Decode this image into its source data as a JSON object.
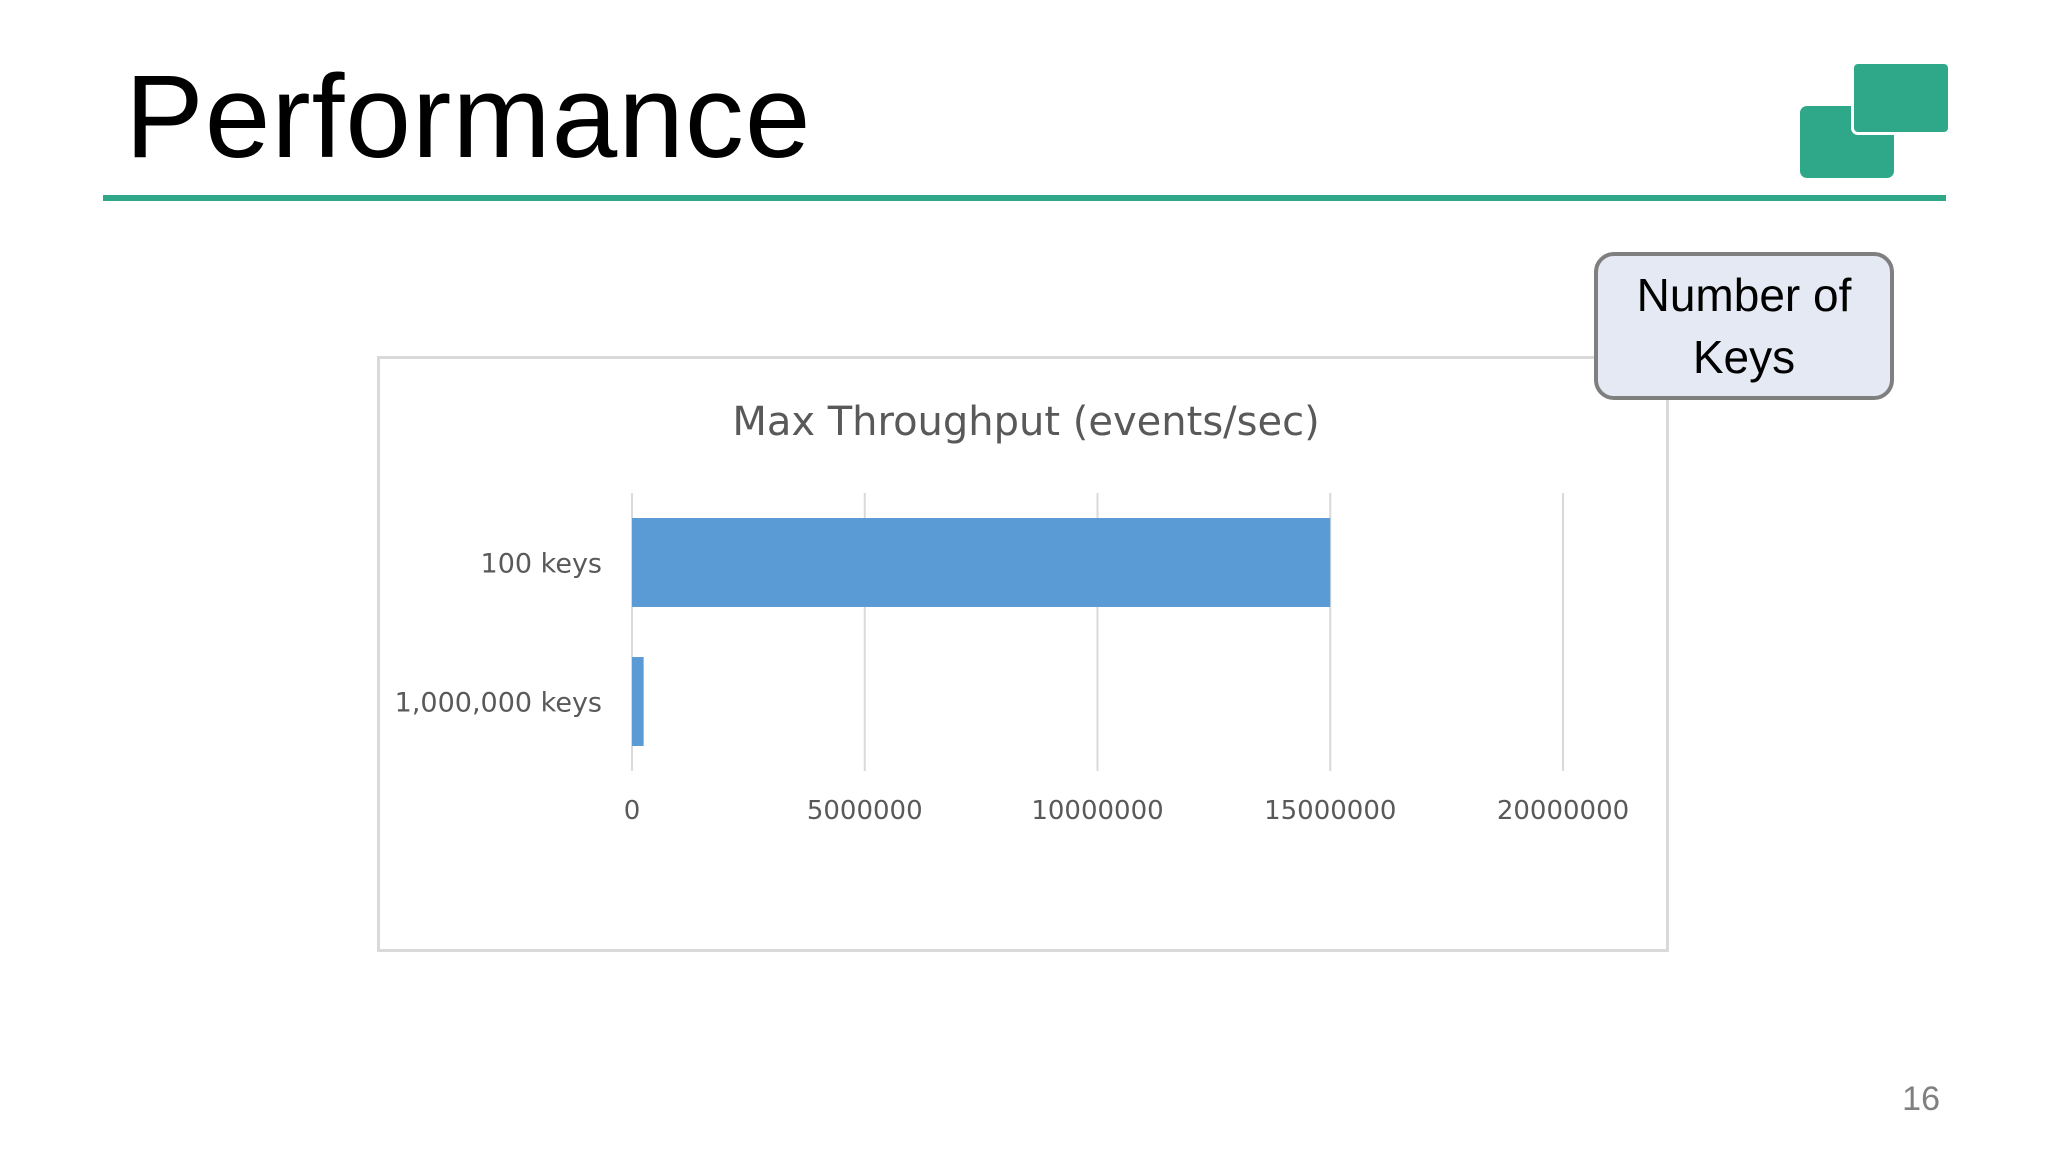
{
  "slide": {
    "title": "Performance",
    "page_number": "16",
    "accent_color": "#2fa889"
  },
  "callout": {
    "text": "Number of Keys"
  },
  "logo": {
    "icon": "two-overlapping-squares-logo",
    "color": "#2fa889"
  },
  "chart_data": {
    "type": "bar",
    "orientation": "horizontal",
    "title": "Max Throughput (events/sec)",
    "xlabel": "",
    "ylabel": "",
    "categories": [
      "100 keys",
      "1,000,000 keys"
    ],
    "values": [
      15000000,
      250000
    ],
    "xlim": [
      0,
      20000000
    ],
    "x_ticks": [
      "0",
      "5000000",
      "10000000",
      "15000000",
      "20000000"
    ],
    "x_tick_values": [
      0,
      5000000,
      10000000,
      15000000,
      20000000
    ],
    "grid": "vertical",
    "legend": "none",
    "bar_color": "#5b9bd5"
  }
}
